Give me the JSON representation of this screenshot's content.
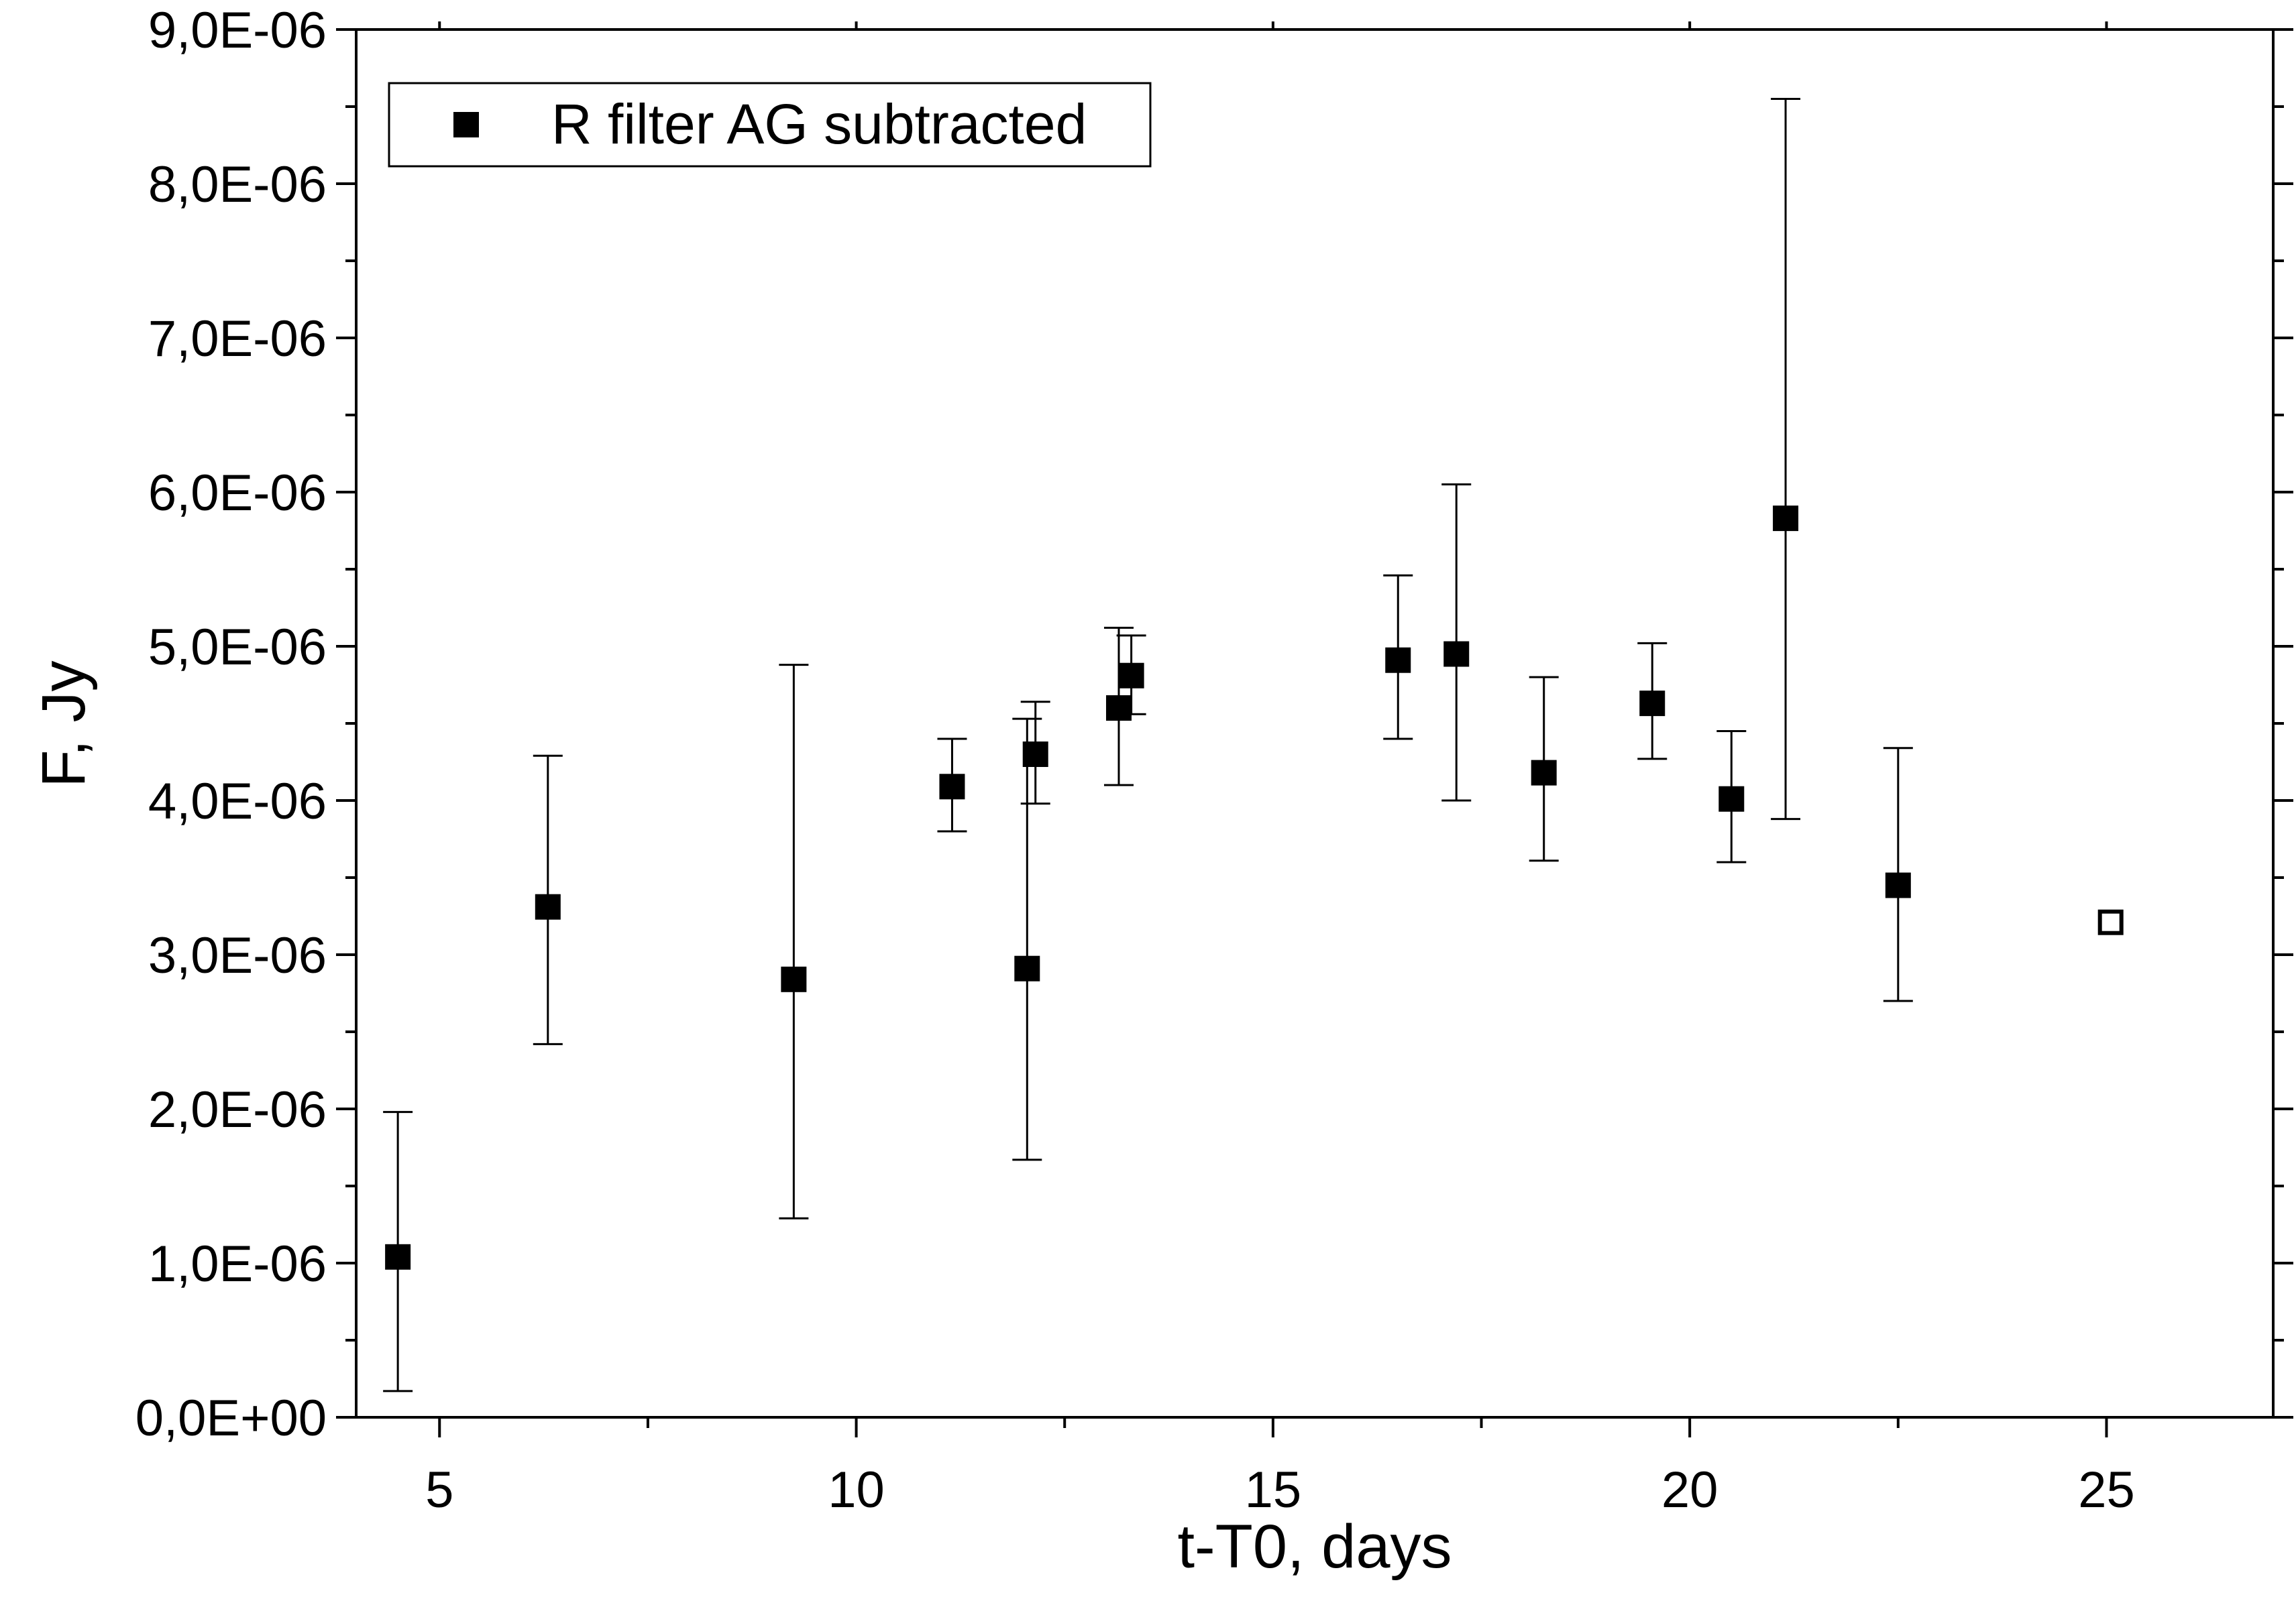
{
  "chart_data": {
    "type": "scatter",
    "xlabel": "t-T0, days",
    "ylabel": "F, Jy",
    "xlim": [
      4,
      27
    ],
    "ylim": [
      0,
      9e-06
    ],
    "x_ticks": [
      5,
      10,
      15,
      20,
      25
    ],
    "x_tick_labels": [
      "5",
      "10",
      "15",
      "20",
      "25"
    ],
    "y_ticks": [
      0,
      1e-06,
      2e-06,
      3e-06,
      4e-06,
      5e-06,
      6e-06,
      7e-06,
      8e-06,
      9e-06
    ],
    "y_tick_labels": [
      "0,0E+00",
      "1,0E-06",
      "2,0E-06",
      "3,0E-06",
      "4,0E-06",
      "5,0E-06",
      "6,0E-06",
      "7,0E-06",
      "8,0E-06",
      "9,0E-06"
    ],
    "grid": false,
    "legend_position": "top-left",
    "series": [
      {
        "name": "R filter AG subtracted",
        "marker": "filled-square",
        "color": "#000000",
        "points": [
          {
            "x": 4.5,
            "y": 1.04e-06,
            "ylow": 1.7e-07,
            "yhigh": 1.98e-06
          },
          {
            "x": 6.3,
            "y": 3.31e-06,
            "ylow": 2.42e-06,
            "yhigh": 4.29e-06
          },
          {
            "x": 9.25,
            "y": 2.84e-06,
            "ylow": 1.29e-06,
            "yhigh": 4.88e-06
          },
          {
            "x": 11.15,
            "y": 4.09e-06,
            "ylow": 3.8e-06,
            "yhigh": 4.4e-06
          },
          {
            "x": 12.05,
            "y": 2.91e-06,
            "ylow": 1.67e-06,
            "yhigh": 4.53e-06
          },
          {
            "x": 12.15,
            "y": 4.3e-06,
            "ylow": 3.98e-06,
            "yhigh": 4.64e-06
          },
          {
            "x": 13.15,
            "y": 4.6e-06,
            "ylow": 4.1e-06,
            "yhigh": 5.12e-06
          },
          {
            "x": 13.3,
            "y": 4.81e-06,
            "ylow": 4.56e-06,
            "yhigh": 5.07e-06
          },
          {
            "x": 16.5,
            "y": 4.91e-06,
            "ylow": 4.4e-06,
            "yhigh": 5.46e-06
          },
          {
            "x": 17.2,
            "y": 4.95e-06,
            "ylow": 4e-06,
            "yhigh": 6.05e-06
          },
          {
            "x": 18.25,
            "y": 4.18e-06,
            "ylow": 3.61e-06,
            "yhigh": 4.8e-06
          },
          {
            "x": 19.55,
            "y": 4.63e-06,
            "ylow": 4.27e-06,
            "yhigh": 5.02e-06
          },
          {
            "x": 20.5,
            "y": 4.01e-06,
            "ylow": 3.6e-06,
            "yhigh": 4.45e-06
          },
          {
            "x": 21.15,
            "y": 5.83e-06,
            "ylow": 3.88e-06,
            "yhigh": 8.55e-06
          },
          {
            "x": 22.5,
            "y": 3.45e-06,
            "ylow": 2.7e-06,
            "yhigh": 4.34e-06
          }
        ]
      },
      {
        "marker": "open-square",
        "color": "#000000",
        "points": [
          {
            "x": 25.05,
            "y": 3.21e-06
          }
        ]
      }
    ]
  }
}
